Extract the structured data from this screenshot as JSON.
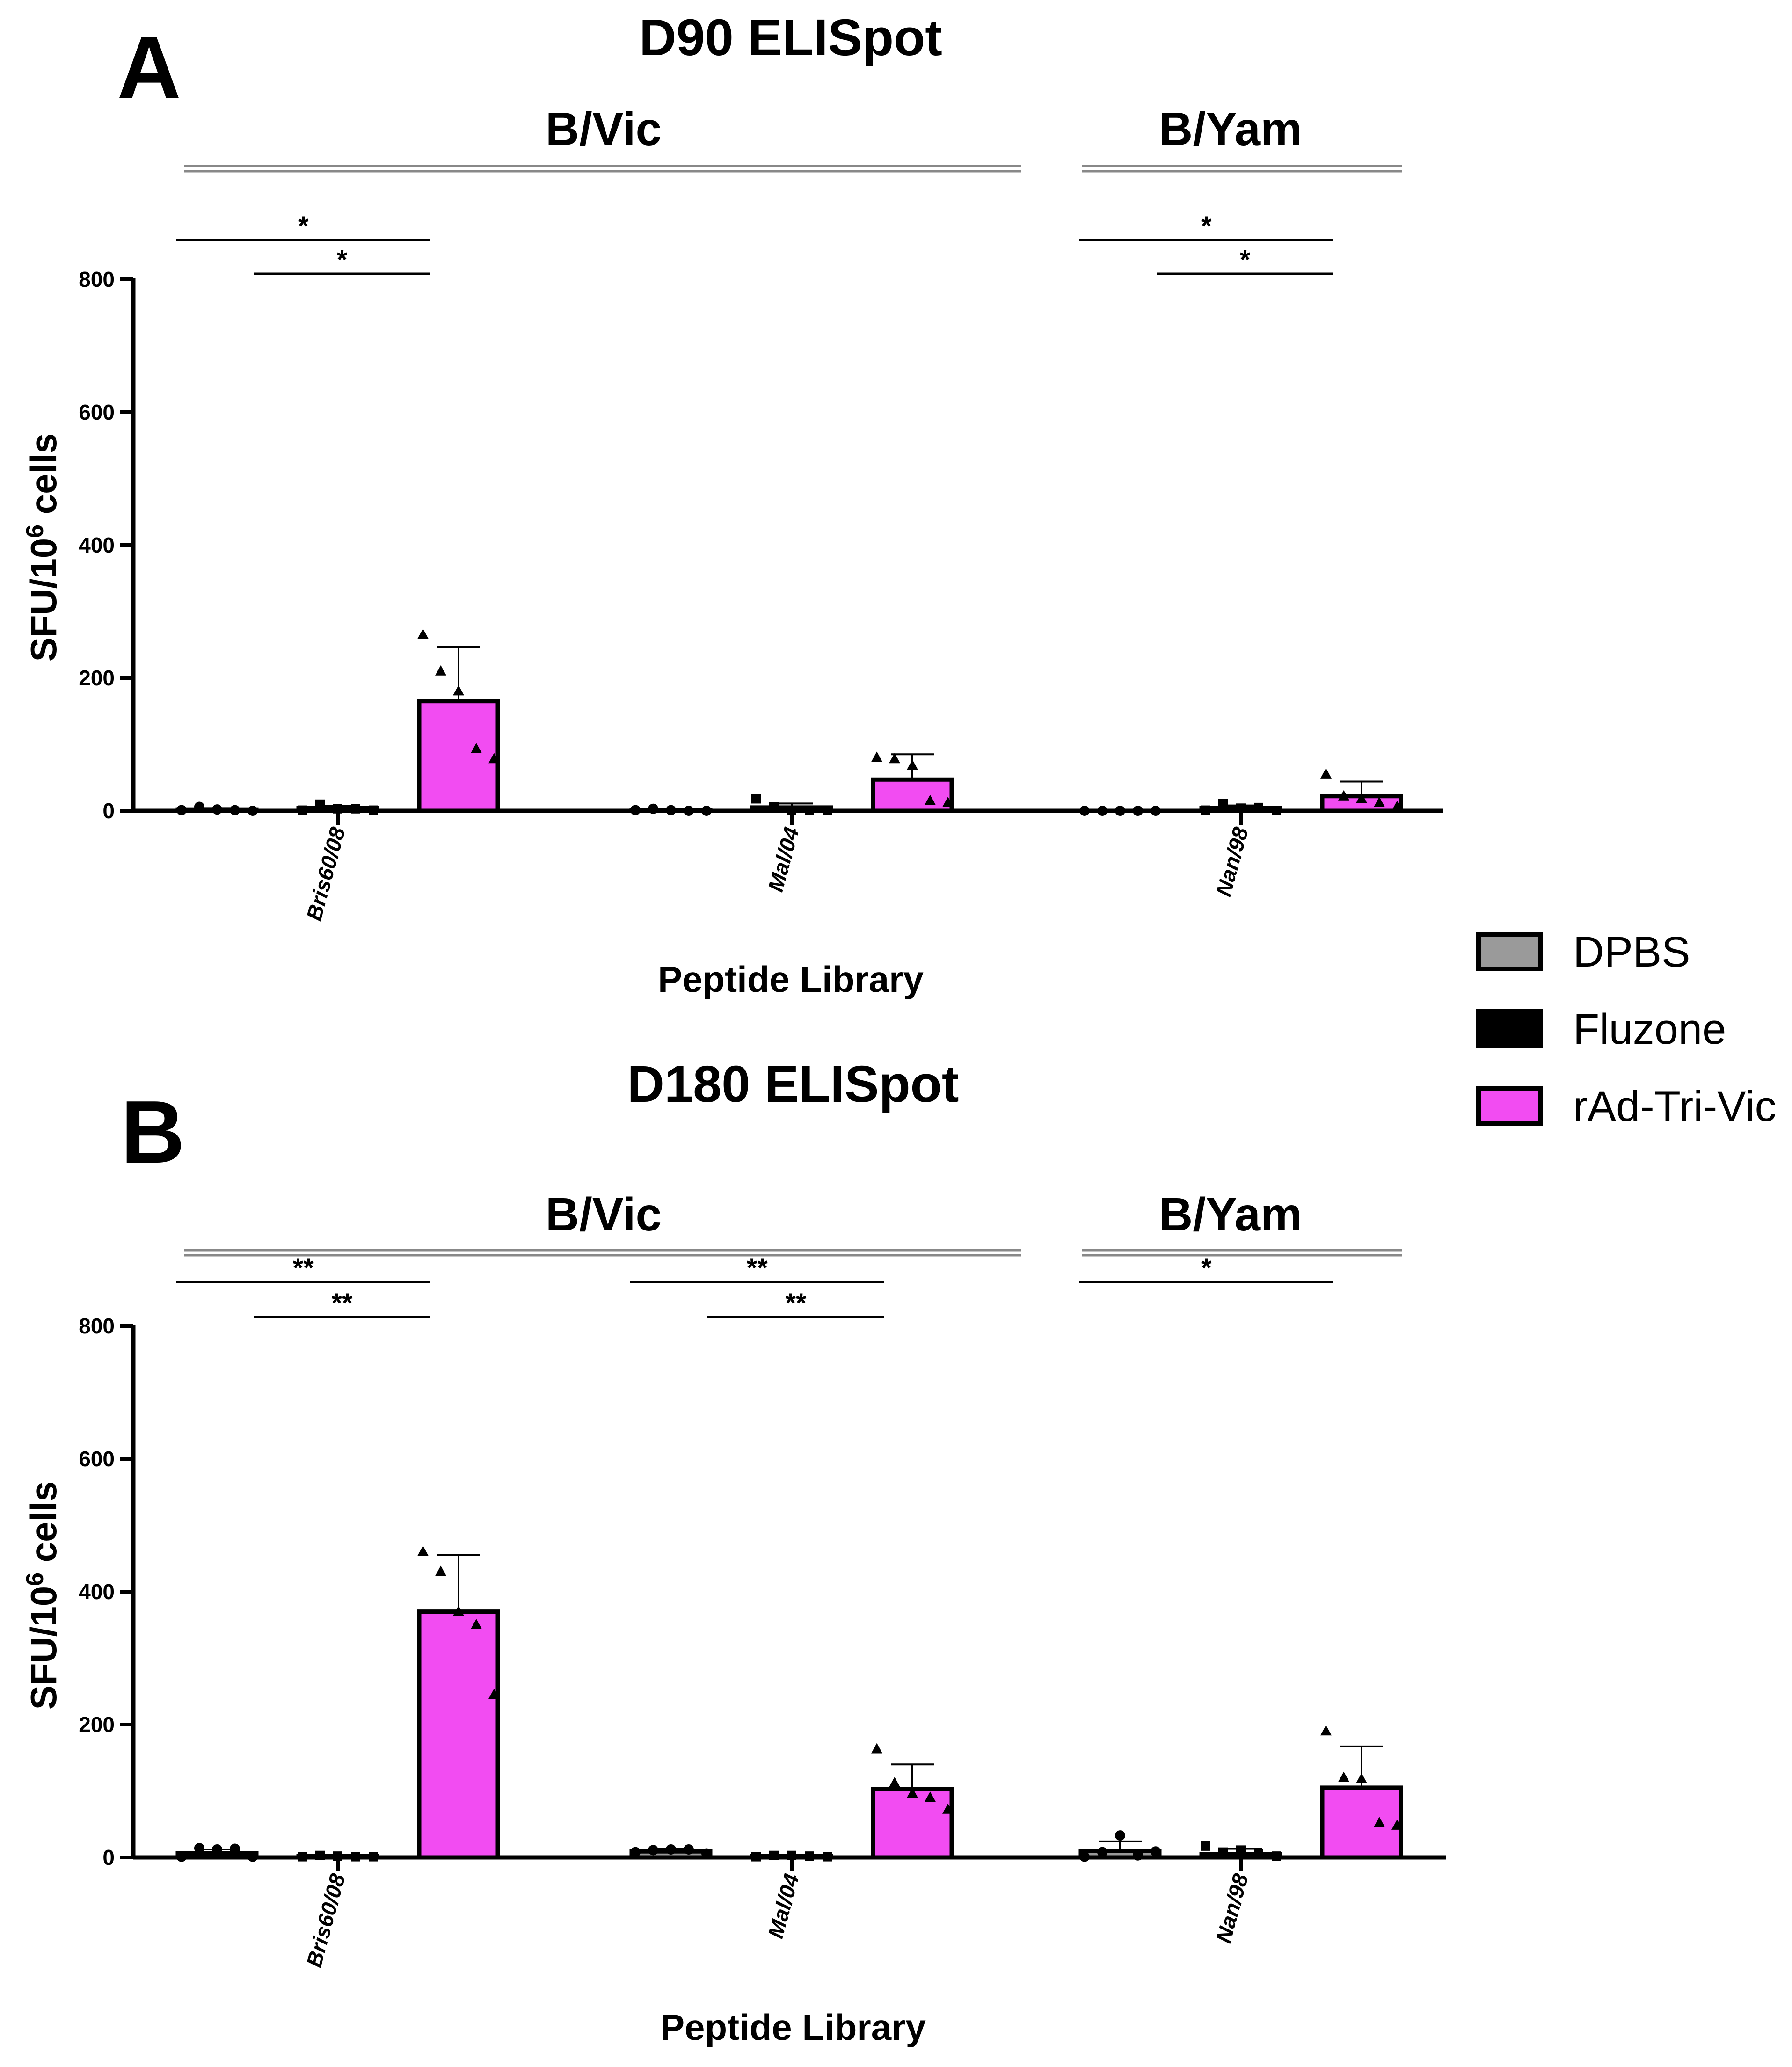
{
  "legend": [
    {
      "name": "DPBS",
      "color": "#9a9a9a"
    },
    {
      "name": "Fluzone",
      "color": "#000000"
    },
    {
      "name": "rAd-Tri-Vic",
      "color": "#f24cf2"
    }
  ],
  "chart_data": [
    {
      "panel": "A",
      "type": "bar",
      "title": "D90 ELISpot",
      "xlabel": "Peptide Library",
      "ylabel": "SFU/10⁶ cells",
      "ylim": [
        0,
        800
      ],
      "yticks": [
        "0",
        "200",
        "400",
        "600",
        "800"
      ],
      "categories": [
        "Bris60/08",
        "Mal/04",
        "Nan/98"
      ],
      "groups": [
        {
          "label": "B/Vic",
          "categories": [
            "Bris60/08",
            "Mal/04"
          ]
        },
        {
          "label": "B/Yam",
          "categories": [
            "Nan/98"
          ]
        }
      ],
      "series": [
        {
          "name": "DPBS",
          "marker": "circle",
          "values": [
            2,
            1,
            0
          ],
          "errors": [
            2,
            1,
            0
          ],
          "points": [
            [
              1,
              6,
              2,
              1,
              0
            ],
            [
              1,
              3,
              1,
              0,
              0
            ],
            [
              0,
              0,
              0,
              0,
              0
            ]
          ]
        },
        {
          "name": "Fluzone",
          "marker": "square",
          "values": [
            4,
            5,
            4
          ],
          "errors": [
            3,
            6,
            4
          ],
          "points": [
            [
              1,
              10,
              3,
              3,
              1
            ],
            [
              18,
              6,
              1,
              1,
              0
            ],
            [
              1,
              11,
              4,
              5,
              0
            ]
          ]
        },
        {
          "name": "rAd-Tri-Vic",
          "marker": "triangle",
          "values": [
            165,
            47,
            22
          ],
          "errors": [
            82,
            38,
            22
          ],
          "points": [
            [
              265,
              210,
              180,
              93,
              78
            ],
            [
              80,
              78,
              68,
              15,
              12
            ],
            [
              55,
              22,
              18,
              12,
              6
            ]
          ]
        }
      ],
      "significance": [
        {
          "category": "Bris60/08",
          "from": "DPBS",
          "to": "rAd-Tri-Vic",
          "label": "*"
        },
        {
          "category": "Bris60/08",
          "from": "Fluzone",
          "to": "rAd-Tri-Vic",
          "label": "*"
        },
        {
          "category": "Nan/98",
          "from": "DPBS",
          "to": "rAd-Tri-Vic",
          "label": "*"
        },
        {
          "category": "Nan/98",
          "from": "Fluzone",
          "to": "rAd-Tri-Vic",
          "label": "*"
        }
      ]
    },
    {
      "panel": "B",
      "type": "bar",
      "title": "D180 ELISpot",
      "xlabel": "Peptide Library",
      "ylabel": "SFU/10⁶ cells",
      "ylim": [
        0,
        800
      ],
      "yticks": [
        "0",
        "200",
        "400",
        "600",
        "800"
      ],
      "categories": [
        "Bris60/08",
        "Mal/04",
        "Nan/98"
      ],
      "groups": [
        {
          "label": "B/Vic",
          "categories": [
            "Bris60/08",
            "Mal/04"
          ]
        },
        {
          "label": "B/Yam",
          "categories": [
            "Nan/98"
          ]
        }
      ],
      "series": [
        {
          "name": "DPBS",
          "marker": "circle",
          "values": [
            6,
            9,
            10
          ],
          "errors": [
            6,
            4,
            14
          ],
          "points": [
            [
              1,
              14,
              12,
              13,
              1
            ],
            [
              8,
              11,
              12,
              12,
              6
            ],
            [
              1,
              8,
              33,
              3,
              9
            ]
          ]
        },
        {
          "name": "Fluzone",
          "marker": "square",
          "values": [
            2,
            2,
            5
          ],
          "errors": [
            1,
            2,
            8
          ],
          "points": [
            [
              1,
              3,
              2,
              1,
              1
            ],
            [
              1,
              3,
              3,
              2,
              1
            ],
            [
              17,
              8,
              11,
              6,
              2
            ]
          ]
        },
        {
          "name": "rAd-Tri-Vic",
          "marker": "triangle",
          "values": [
            370,
            103,
            105
          ],
          "errors": [
            85,
            37,
            62
          ],
          "points": [
            [
              460,
              430,
              370,
              350,
              245
            ],
            [
              163,
              112,
              96,
              90,
              72
            ],
            [
              190,
              120,
              118,
              52,
              48
            ]
          ]
        }
      ],
      "significance": [
        {
          "category": "Bris60/08",
          "from": "DPBS",
          "to": "rAd-Tri-Vic",
          "label": "**"
        },
        {
          "category": "Bris60/08",
          "from": "Fluzone",
          "to": "rAd-Tri-Vic",
          "label": "**"
        },
        {
          "category": "Mal/04",
          "from": "DPBS",
          "to": "rAd-Tri-Vic",
          "label": "**"
        },
        {
          "category": "Mal/04",
          "from": "Fluzone",
          "to": "rAd-Tri-Vic",
          "label": "**"
        },
        {
          "category": "Nan/98",
          "from": "DPBS",
          "to": "rAd-Tri-Vic",
          "label": "*"
        }
      ]
    }
  ]
}
